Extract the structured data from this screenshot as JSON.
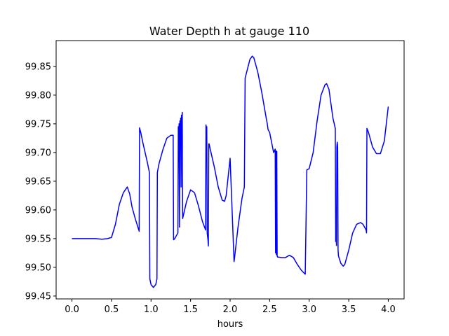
{
  "chart_data": {
    "type": "line",
    "title": "Water Depth h at gauge 110",
    "xlabel": "hours",
    "ylabel": "",
    "xlim": [
      -0.2,
      4.2
    ],
    "ylim": [
      99.445,
      99.895
    ],
    "grid": false,
    "x_ticks": [
      0.0,
      0.5,
      1.0,
      1.5,
      2.0,
      2.5,
      3.0,
      3.5,
      4.0
    ],
    "x_tick_labels": [
      "0.0",
      "0.5",
      "1.0",
      "1.5",
      "2.0",
      "2.5",
      "3.0",
      "3.5",
      "4.0"
    ],
    "y_ticks": [
      99.45,
      99.5,
      99.55,
      99.6,
      99.65,
      99.7,
      99.75,
      99.8,
      99.85
    ],
    "y_tick_labels": [
      "99.45",
      "99.50",
      "99.55",
      "99.60",
      "99.65",
      "99.70",
      "99.75",
      "99.80",
      "99.85"
    ],
    "line_color": "#0000ff",
    "series": [
      {
        "x": [
          0.0,
          0.1,
          0.2,
          0.3,
          0.38,
          0.45,
          0.5,
          0.55,
          0.6,
          0.65,
          0.7,
          0.73,
          0.76,
          0.8,
          0.85,
          0.855,
          0.87,
          0.9,
          0.95,
          0.98,
          0.985,
          1.0,
          1.03,
          1.06,
          1.075,
          1.08,
          1.1,
          1.15,
          1.2,
          1.25,
          1.28,
          1.285,
          1.3,
          1.32,
          1.34,
          1.345,
          1.35,
          1.355,
          1.36,
          1.365,
          1.37,
          1.375,
          1.38,
          1.385,
          1.39,
          1.395,
          1.4,
          1.45,
          1.5,
          1.55,
          1.6,
          1.65,
          1.69,
          1.695,
          1.7,
          1.705,
          1.71,
          1.72,
          1.725,
          1.73,
          1.735,
          1.75,
          1.8,
          1.85,
          1.9,
          1.93,
          1.95,
          2.0,
          2.05,
          2.055,
          2.1,
          2.15,
          2.18,
          2.19,
          2.2,
          2.25,
          2.28,
          2.3,
          2.35,
          2.4,
          2.45,
          2.47,
          2.48,
          2.5,
          2.55,
          2.57,
          2.575,
          2.58,
          2.585,
          2.59,
          2.595,
          2.6,
          2.65,
          2.7,
          2.75,
          2.8,
          2.85,
          2.9,
          2.95,
          2.97,
          2.975,
          3.0,
          3.05,
          3.1,
          3.15,
          3.2,
          3.22,
          3.25,
          3.3,
          3.33,
          3.335,
          3.34,
          3.345,
          3.35,
          3.355,
          3.36,
          3.365,
          3.37,
          3.4,
          3.43,
          3.45,
          3.5,
          3.55,
          3.6,
          3.65,
          3.68,
          3.7,
          3.72,
          3.725,
          3.73,
          3.75,
          3.8,
          3.85,
          3.9,
          3.95,
          4.0
        ],
        "y": [
          99.55,
          99.55,
          99.55,
          99.55,
          99.549,
          99.55,
          99.552,
          99.575,
          99.61,
          99.63,
          99.64,
          99.628,
          99.605,
          99.585,
          99.563,
          99.743,
          99.735,
          99.715,
          99.685,
          99.665,
          99.48,
          99.47,
          99.465,
          99.47,
          99.48,
          99.665,
          99.68,
          99.705,
          99.725,
          99.73,
          99.73,
          99.548,
          99.55,
          99.555,
          99.56,
          99.745,
          99.71,
          99.75,
          99.57,
          99.755,
          99.72,
          99.76,
          99.64,
          99.765,
          99.745,
          99.77,
          99.585,
          99.615,
          99.635,
          99.63,
          99.607,
          99.58,
          99.565,
          99.748,
          99.72,
          99.745,
          99.56,
          99.548,
          99.537,
          99.715,
          99.715,
          99.705,
          99.675,
          99.64,
          99.617,
          99.615,
          99.625,
          99.69,
          99.51,
          99.515,
          99.57,
          99.62,
          99.64,
          99.83,
          99.835,
          99.862,
          99.868,
          99.865,
          99.84,
          99.805,
          99.765,
          99.75,
          99.74,
          99.735,
          99.7,
          99.706,
          99.525,
          99.703,
          99.522,
          99.702,
          99.52,
          99.518,
          99.517,
          99.517,
          99.521,
          99.517,
          99.505,
          99.495,
          99.488,
          99.67,
          99.67,
          99.672,
          99.7,
          99.755,
          99.8,
          99.818,
          99.82,
          99.81,
          99.76,
          99.742,
          99.545,
          99.56,
          99.538,
          99.71,
          99.718,
          99.71,
          99.53,
          99.52,
          99.507,
          99.502,
          99.505,
          99.53,
          99.56,
          99.575,
          99.578,
          99.575,
          99.57,
          99.565,
          99.56,
          99.742,
          99.735,
          99.71,
          99.698,
          99.698,
          99.72,
          99.78
        ]
      }
    ]
  }
}
